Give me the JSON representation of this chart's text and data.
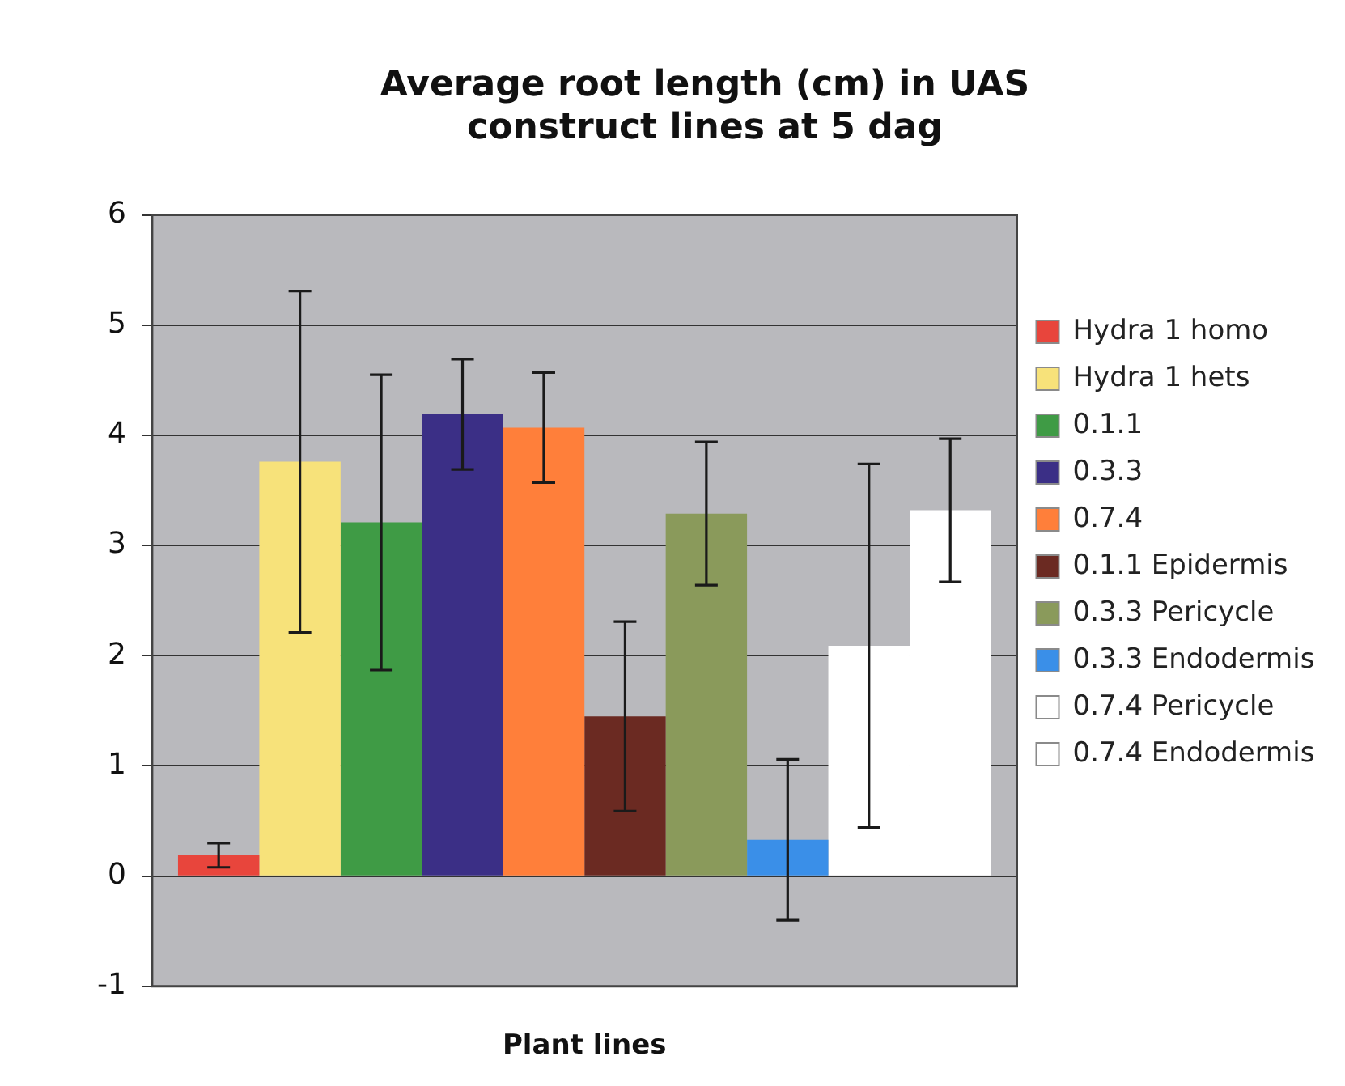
{
  "chart_data": {
    "type": "bar",
    "title": "Average root length (cm) in UAS construct lines at 5 dag",
    "xlabel": "Plant lines",
    "categories": [
      null
    ],
    "series": [
      {
        "name": "Hydra 1 homo",
        "color": "#e8453c",
        "values": [
          0.19
        ],
        "errors": [
          0.11
        ]
      },
      {
        "name": "Hydra 1 hets",
        "color": "#f7e27a",
        "values": [
          3.76
        ],
        "errors": [
          1.55
        ]
      },
      {
        "name": "0.1.1",
        "color": "#3f9b45",
        "values": [
          3.21
        ],
        "errors": [
          1.34
        ]
      },
      {
        "name": "0.3.3",
        "color": "#3b2f86",
        "values": [
          4.19
        ],
        "errors": [
          0.5
        ]
      },
      {
        "name": "0.7.4",
        "color": "#ff7f3a",
        "values": [
          4.07
        ],
        "errors": [
          0.5
        ]
      },
      {
        "name": "0.1.1 Epidermis",
        "color": "#6b2a22",
        "values": [
          1.45
        ],
        "errors": [
          0.86
        ]
      },
      {
        "name": "0.3.3 Pericycle",
        "color": "#8a9a5b",
        "values": [
          3.29
        ],
        "errors": [
          0.65
        ]
      },
      {
        "name": "0.3.3 Endodermis",
        "color": "#3a8fe8",
        "values": [
          0.33
        ],
        "errors": [
          0.73
        ]
      },
      {
        "name": "0.7.4 Pericycle",
        "color": "#ffffff",
        "values": [
          2.09
        ],
        "errors": [
          1.65
        ]
      },
      {
        "name": "0.7.4 Endodermis",
        "color": "#ffffff",
        "values": [
          3.32
        ],
        "errors": [
          0.65
        ]
      }
    ],
    "ylim": [
      -1,
      6
    ],
    "yticks": [
      -1,
      0,
      1,
      2,
      3,
      4,
      5,
      6
    ],
    "grid": "y",
    "legend": "right"
  }
}
